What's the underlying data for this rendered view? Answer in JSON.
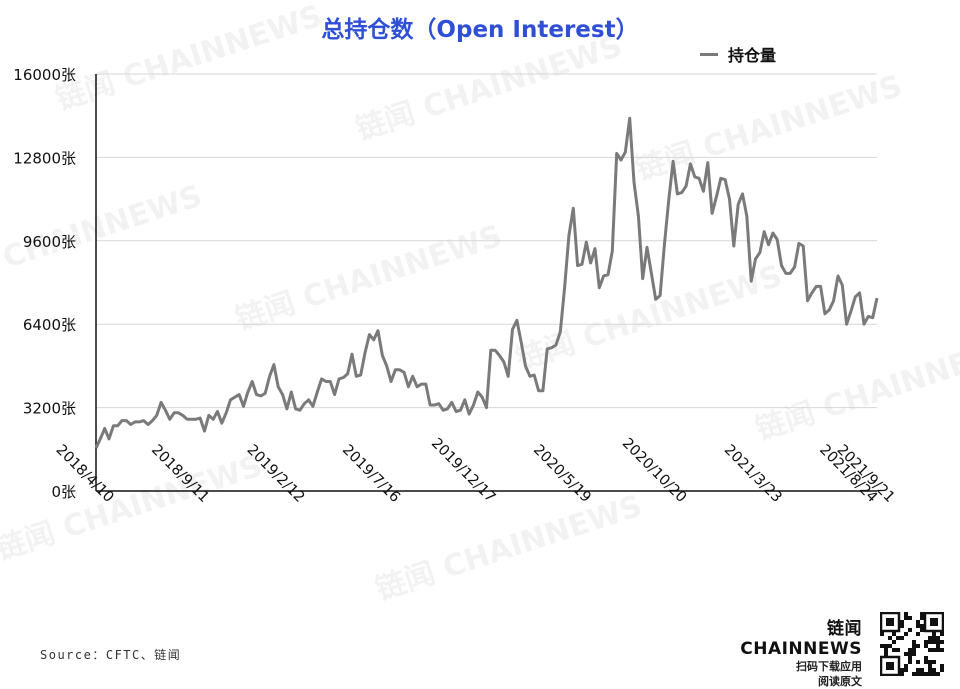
{
  "title": "总持仓数（Open Interest）",
  "legend": {
    "label": "持仓量"
  },
  "source": "Source：CFTC、链闻",
  "watermark": "链闻 CHAINNEWS",
  "brand": {
    "logo_text": "链闻 CHAINNEWS",
    "line1": "扫码下载应用",
    "line2": "阅读原文"
  },
  "colors": {
    "title": "#2f4fd6",
    "series": "#7a7a7a",
    "grid": "#d6d6d6"
  },
  "chart_data": {
    "type": "line",
    "title": "总持仓数（Open Interest）",
    "xlabel": "",
    "ylabel": "",
    "ylim": [
      0,
      16000
    ],
    "yticks": [
      0,
      3200,
      6400,
      9600,
      12800,
      16000
    ],
    "ytick_labels": [
      "0张",
      "3200张",
      "6400张",
      "9600张",
      "12800张",
      "16000张"
    ],
    "xtick_labels": [
      "2018/4/10",
      "2018/9/11",
      "2019/2/12",
      "2019/7/16",
      "2019/12/17",
      "2020/5/19",
      "2020/10/20",
      "2021/3/23",
      "2021/8/24",
      "2021/9/21"
    ],
    "xtick_index": [
      0,
      22,
      44,
      66,
      88,
      110,
      132,
      154,
      176,
      180
    ],
    "grid": true,
    "legend_position": "top-right",
    "series": [
      {
        "name": "持仓量",
        "values": [
          1650,
          2000,
          2400,
          2000,
          2500,
          2500,
          2700,
          2700,
          2550,
          2650,
          2650,
          2700,
          2550,
          2700,
          2900,
          3400,
          3100,
          2750,
          3000,
          3000,
          2900,
          2750,
          2750,
          2750,
          2800,
          2300,
          2900,
          2750,
          3050,
          2600,
          3000,
          3500,
          3600,
          3700,
          3250,
          3800,
          4200,
          3700,
          3650,
          3750,
          4400,
          4850,
          4000,
          3700,
          3150,
          3800,
          3150,
          3100,
          3350,
          3500,
          3250,
          3800,
          4300,
          4200,
          4200,
          3700,
          4300,
          4350,
          4500,
          5250,
          4400,
          4450,
          5300,
          6000,
          5800,
          6150,
          5200,
          4800,
          4200,
          4650,
          4650,
          4550,
          4000,
          4400,
          4000,
          4100,
          4100,
          3300,
          3300,
          3350,
          3100,
          3150,
          3400,
          3050,
          3100,
          3500,
          2950,
          3300,
          3800,
          3600,
          3200,
          5400,
          5400,
          5200,
          4950,
          4400,
          6200,
          6550,
          5700,
          4800,
          4400,
          4450,
          3850,
          3850,
          5450,
          5500,
          5600,
          6100,
          7800,
          9800,
          10850,
          8650,
          8700,
          9550,
          8750,
          9300,
          7800,
          8250,
          8300,
          9200,
          12950,
          12700,
          13000,
          14300,
          11850,
          10550,
          8150,
          9350,
          8350,
          7350,
          7500,
          9450,
          11150,
          12650,
          11400,
          11450,
          11700,
          12550,
          12050,
          12000,
          11500,
          12600,
          10650,
          11300,
          12000,
          11950,
          11200,
          9400,
          11000,
          11400,
          10550,
          8050,
          8900,
          9150,
          9950,
          9450,
          9900,
          9650,
          8650,
          8350,
          8350,
          8600,
          9500,
          9400,
          7300,
          7600,
          7850,
          7850,
          6800,
          6950,
          7300,
          8250,
          7900,
          6400,
          6900,
          7450,
          7600,
          6400,
          6700,
          6650,
          7400
        ]
      }
    ]
  }
}
